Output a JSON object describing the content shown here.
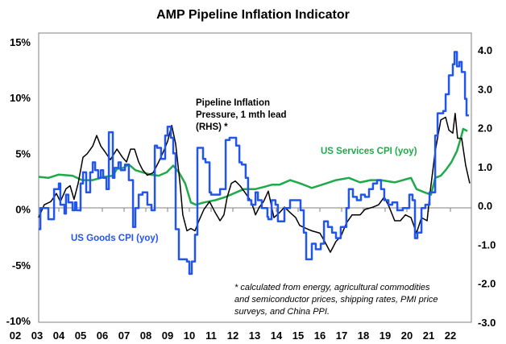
{
  "chart_data": {
    "type": "line",
    "title": "AMP Pipeline Inflation Indicator",
    "xlabel": "",
    "ylabel_left": "",
    "ylabel_right": "",
    "x_tick_labels": [
      "02",
      "03",
      "04",
      "05",
      "06",
      "07",
      "08",
      "09",
      "10",
      "11",
      "12",
      "13",
      "14",
      "15",
      "16",
      "17",
      "18",
      "19",
      "20",
      "21",
      "22"
    ],
    "x_tick_years": [
      2002,
      2003,
      2004,
      2005,
      2006,
      2007,
      2008,
      2009,
      2010,
      2011,
      2012,
      2013,
      2014,
      2015,
      2016,
      2017,
      2018,
      2019,
      2020,
      2021,
      2022
    ],
    "xlim": [
      2003.07,
      2022.96
    ],
    "y_left": {
      "ticks": [
        15,
        10,
        5,
        0,
        -5,
        -10
      ],
      "tick_labels": [
        "15%",
        "10%",
        "5%",
        "0%",
        "-5%",
        "-10%"
      ],
      "ylim": [
        -10,
        15
      ]
    },
    "y_right": {
      "ticks": [
        4,
        3,
        2,
        1,
        0,
        -1,
        -2,
        -3
      ],
      "tick_labels": [
        "4.0",
        "3.0",
        "2.0",
        "1.0",
        "0.0",
        "-1.0",
        "-2.0",
        "-3.0"
      ],
      "ylim": [
        -3,
        4
      ]
    },
    "grid": false,
    "series": [
      {
        "name": "US Goods CPI (yoy)",
        "axis": "left",
        "color": "#2255ee",
        "step": true,
        "x": [
          2003.07,
          2003.15,
          2003.52,
          2003.78,
          2004.0,
          2004.07,
          2004.26,
          2004.33,
          2004.44,
          2004.63,
          2004.74,
          2004.81,
          2005.0,
          2005.11,
          2005.26,
          2005.44,
          2005.56,
          2005.67,
          2005.81,
          2005.93,
          2006.04,
          2006.19,
          2006.3,
          2006.48,
          2006.56,
          2006.74,
          2006.85,
          2007.04,
          2007.22,
          2007.41,
          2007.52,
          2007.67,
          2007.85,
          2008.07,
          2008.26,
          2008.41,
          2008.52,
          2008.7,
          2008.89,
          2009.0,
          2009.15,
          2009.26,
          2009.37,
          2009.52,
          2009.63,
          2009.89,
          2010.0,
          2010.11,
          2010.26,
          2010.37,
          2010.48,
          2010.63,
          2010.74,
          2010.93,
          2011.0,
          2011.19,
          2011.41,
          2011.67,
          2011.85,
          2012.15,
          2012.3,
          2012.41,
          2012.59,
          2012.7,
          2012.85,
          2013.04,
          2013.15,
          2013.26,
          2013.33,
          2013.59,
          2013.63,
          2013.78,
          2013.96,
          2014.07,
          2014.37,
          2014.63,
          2015.11,
          2015.26,
          2015.37,
          2015.63,
          2015.81,
          2016.04,
          2016.19,
          2016.37,
          2016.56,
          2016.74,
          2016.96,
          2017.22,
          2017.33,
          2017.52,
          2017.7,
          2017.89,
          2018.07,
          2018.26,
          2018.44,
          2018.63,
          2018.81,
          2018.96,
          2019.15,
          2019.33,
          2019.56,
          2019.81,
          2020.0,
          2020.11,
          2020.26,
          2020.37,
          2020.48,
          2020.67,
          2020.85,
          2021.04,
          2021.3,
          2021.41,
          2021.67,
          2021.78,
          2021.93,
          2022.11,
          2022.19,
          2022.3,
          2022.41,
          2022.52,
          2022.67,
          2022.74,
          2022.85
        ],
        "y": [
          -1.8,
          0.1,
          -0.9,
          1.8,
          2.3,
          0.4,
          -0.4,
          1.3,
          0.6,
          -0.1,
          0.6,
          -0.1,
          2.3,
          3.3,
          1.5,
          3.3,
          4.2,
          3.5,
          2.8,
          3.5,
          2.8,
          1.8,
          6.9,
          2.8,
          3.7,
          4.2,
          3.5,
          4.0,
          2.6,
          -1.6,
          0.1,
          1.3,
          1.5,
          0.4,
          -0.1,
          5.7,
          5.5,
          4.5,
          6.6,
          7.4,
          6.4,
          5.0,
          -1.8,
          -4.5,
          -4.5,
          -4.7,
          -5.8,
          -4.7,
          -2.3,
          5.5,
          5.5,
          4.5,
          4.2,
          1.5,
          1.3,
          1.3,
          1.8,
          6.2,
          6.4,
          5.7,
          4.2,
          4.0,
          2.8,
          0.8,
          0.4,
          1.5,
          0.8,
          0.8,
          0.1,
          -0.7,
          -0.9,
          0.8,
          0.4,
          -1.1,
          0.1,
          0.8,
          -0.1,
          -2.1,
          -4.5,
          -3.1,
          -3.6,
          -3.1,
          -1.1,
          -1.6,
          -2.1,
          -2.6,
          -1.6,
          0.1,
          1.8,
          1.1,
          0.8,
          1.3,
          1.1,
          1.8,
          2.3,
          2.6,
          1.8,
          0.8,
          0.4,
          0.6,
          -0.1,
          0.1,
          0.1,
          1.3,
          0.8,
          -2.6,
          -2.1,
          0.1,
          0.4,
          1.5,
          6.6,
          8.6,
          8.8,
          10.3,
          12.0,
          13.0,
          14.1,
          12.8,
          13.2,
          12.3,
          9.9,
          8.4,
          8.4
        ]
      },
      {
        "name": "US Services CPI (yoy)",
        "axis": "left",
        "color": "#1faa4a",
        "step": false,
        "x": [
          2003.07,
          2003.52,
          2004.0,
          2004.63,
          2005.07,
          2005.56,
          2006.11,
          2006.48,
          2006.67,
          2006.96,
          2007.22,
          2007.52,
          2007.85,
          2008.22,
          2008.59,
          2008.96,
          2009.26,
          2009.52,
          2009.81,
          2010.07,
          2010.3,
          2010.67,
          2011.19,
          2011.67,
          2012.15,
          2012.52,
          2013.04,
          2013.44,
          2013.81,
          2014.15,
          2014.63,
          2015.11,
          2015.63,
          2016.11,
          2016.74,
          2017.33,
          2017.85,
          2018.33,
          2018.81,
          2019.44,
          2020.19,
          2020.44,
          2020.81,
          2021.11,
          2021.3,
          2021.56,
          2021.78,
          2022.04,
          2022.3,
          2022.48,
          2022.59,
          2022.78
        ],
        "y": [
          2.9,
          2.8,
          3.1,
          3.0,
          2.6,
          2.6,
          2.9,
          3.0,
          3.6,
          3.7,
          4.0,
          3.5,
          3.3,
          3.1,
          3.0,
          3.3,
          3.9,
          3.3,
          2.3,
          0.6,
          0.4,
          0.6,
          0.8,
          1.1,
          1.5,
          1.8,
          1.8,
          2.0,
          2.2,
          2.2,
          2.6,
          2.3,
          1.9,
          2.2,
          2.6,
          2.8,
          2.4,
          2.6,
          2.6,
          2.4,
          2.8,
          1.8,
          1.5,
          1.3,
          2.8,
          3.0,
          3.5,
          4.2,
          5.2,
          6.4,
          7.2,
          7.0
        ]
      },
      {
        "name": "Pipeline Inflation Pressure, 1 mth lead (RHS) *",
        "axis": "right",
        "color": "#000000",
        "step": false,
        "x": [
          2003.07,
          2003.33,
          2003.63,
          2003.89,
          2004.07,
          2004.33,
          2004.52,
          2004.7,
          2004.89,
          2005.11,
          2005.3,
          2005.56,
          2005.74,
          2005.93,
          2006.11,
          2006.37,
          2006.67,
          2006.93,
          2007.11,
          2007.3,
          2007.48,
          2007.67,
          2007.85,
          2008.07,
          2008.33,
          2008.59,
          2008.81,
          2009.0,
          2009.19,
          2009.37,
          2009.56,
          2009.7,
          2009.89,
          2010.07,
          2010.26,
          2010.44,
          2010.67,
          2010.93,
          2011.19,
          2011.41,
          2011.59,
          2011.74,
          2011.93,
          2012.11,
          2012.33,
          2012.59,
          2012.85,
          2013.04,
          2013.22,
          2013.41,
          2013.63,
          2013.89,
          2014.15,
          2014.37,
          2014.63,
          2014.89,
          2015.07,
          2015.37,
          2015.63,
          2016.0,
          2016.22,
          2016.48,
          2016.74,
          2016.96,
          2017.22,
          2017.48,
          2017.85,
          2018.07,
          2018.44,
          2018.7,
          2018.96,
          2019.19,
          2019.44,
          2019.7,
          2019.93,
          2020.19,
          2020.44,
          2020.67,
          2020.93,
          2021.04,
          2021.3,
          2021.56,
          2021.78,
          2021.93,
          2022.11,
          2022.22,
          2022.33,
          2022.52,
          2022.7,
          2022.89
        ],
        "y": [
          -0.31,
          0.02,
          0.1,
          0.31,
          0.1,
          0.43,
          0.51,
          0.16,
          0.57,
          1.24,
          1.33,
          1.53,
          1.8,
          1.53,
          1.39,
          1.18,
          1.45,
          1.24,
          1.12,
          1.45,
          1.45,
          1.12,
          0.92,
          0.78,
          0.84,
          1.12,
          1.39,
          1.65,
          2.06,
          1.59,
          0.63,
          -0.24,
          -0.65,
          -0.59,
          -0.65,
          -0.39,
          -0.1,
          0.1,
          -0.18,
          -0.39,
          -0.24,
          0.22,
          0.57,
          0.63,
          0.51,
          0.31,
          0.1,
          -0.24,
          -0.04,
          0.1,
          0.37,
          -0.31,
          -0.18,
          -0.04,
          -0.18,
          -0.31,
          -0.51,
          -0.59,
          -0.65,
          -0.71,
          -0.92,
          -1.2,
          -0.92,
          -0.8,
          -0.45,
          -0.24,
          -0.24,
          -0.1,
          -0.04,
          0.02,
          0.22,
          -0.04,
          -0.39,
          -0.39,
          -0.24,
          -0.31,
          -0.71,
          -0.31,
          -0.39,
          0.22,
          1.39,
          2.2,
          2.27,
          1.94,
          1.86,
          2.37,
          1.73,
          1.73,
          1.04,
          0.57
        ]
      }
    ],
    "annotations": {
      "pipeline_label": [
        "Pipeline Inflation",
        "Pressure, 1 mth lead",
        "(RHS) *"
      ],
      "services_label": "US Services CPI (yoy)",
      "goods_label": "US Goods CPI (yoy)",
      "footnote": [
        "* calculated from energy, agricultural commodities",
        "and semiconductor prices, shipping rates, PMI price",
        "surveys, and China PPI."
      ]
    },
    "legend": "none (inline labels)"
  }
}
